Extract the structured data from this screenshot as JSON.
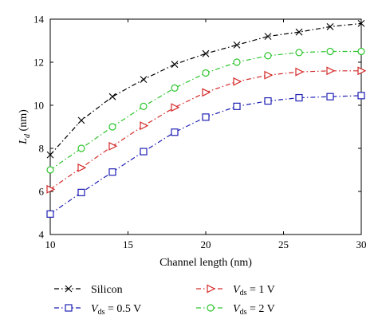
{
  "chart_data": {
    "type": "line",
    "xlabel": "Channel length (nm)",
    "ylabel": {
      "main": "L",
      "sub": "d",
      "unit": " (nm)"
    },
    "xlim": [
      10,
      30
    ],
    "ylim": [
      4,
      14
    ],
    "xticks": [
      10,
      15,
      20,
      25,
      30
    ],
    "yticks": [
      4,
      6,
      8,
      10,
      12,
      14
    ],
    "grid": false,
    "legend_placement": "bottom",
    "x": [
      10,
      12,
      14,
      16,
      18,
      20,
      22,
      24,
      26,
      28,
      30
    ],
    "series": [
      {
        "name": "Silicon",
        "legend": {
          "main": "Silicon",
          "sub": "",
          "rest": ""
        },
        "color": "#000000",
        "marker": "x",
        "values": [
          7.7,
          9.3,
          10.4,
          11.2,
          11.9,
          12.4,
          12.8,
          13.2,
          13.4,
          13.65,
          13.8
        ]
      },
      {
        "name": "Vds = 0.5 V",
        "legend": {
          "main": "V",
          "sub": "ds",
          "rest": " = 0.5 V"
        },
        "color": "#1f1fb4",
        "marker": "square",
        "values": [
          4.95,
          5.95,
          6.9,
          7.85,
          8.75,
          9.45,
          9.95,
          10.2,
          10.35,
          10.4,
          10.45
        ]
      },
      {
        "name": "Vds = 1 V",
        "legend": {
          "main": "V",
          "sub": "ds",
          "rest": " = 1 V"
        },
        "color": "#d42a2a",
        "marker": "triangle-right",
        "values": [
          6.1,
          7.1,
          8.1,
          9.05,
          9.9,
          10.6,
          11.1,
          11.4,
          11.55,
          11.6,
          11.6
        ]
      },
      {
        "name": "Vds = 2 V",
        "legend": {
          "main": "V",
          "sub": "ds",
          "rest": " = 2 V"
        },
        "color": "#2dc52d",
        "marker": "circle",
        "values": [
          7.0,
          8.0,
          9.0,
          9.95,
          10.8,
          11.5,
          12.0,
          12.3,
          12.45,
          12.5,
          12.5
        ]
      }
    ]
  }
}
